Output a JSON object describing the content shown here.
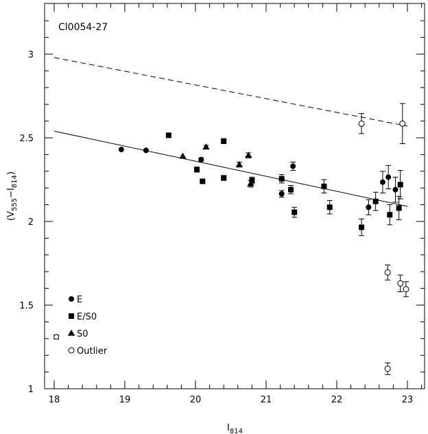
{
  "chart_data": {
    "type": "scatter",
    "title": "Cl0054-27",
    "xlabel_main": "I",
    "xlabel_sub": "814",
    "ylabel_open": "(V",
    "ylabel_sub1": "555",
    "ylabel_mid": "−I",
    "ylabel_sub2": "814",
    "ylabel_close": ")",
    "xlim": [
      18,
      23.2
    ],
    "ylim": [
      1,
      3.25
    ],
    "x_ticks": [
      18,
      19,
      20,
      21,
      22,
      23
    ],
    "y_ticks": [
      1,
      1.5,
      2,
      2.5,
      3
    ],
    "x_tick_labels": [
      "18",
      "19",
      "20",
      "21",
      "22",
      "23"
    ],
    "y_tick_labels": [
      "1",
      "1.5",
      "2",
      "2.5",
      "3"
    ],
    "legend_position": "bottom-left",
    "series": [
      {
        "name": "E",
        "marker": "filled-circle",
        "points": [
          {
            "x": 18.95,
            "y": 2.43,
            "err": 0
          },
          {
            "x": 19.3,
            "y": 2.425,
            "err": 0
          },
          {
            "x": 20.08,
            "y": 2.37,
            "err": 0.01
          },
          {
            "x": 21.22,
            "y": 2.165,
            "err": 0.02
          },
          {
            "x": 21.38,
            "y": 2.33,
            "err": 0.025
          },
          {
            "x": 22.45,
            "y": 2.085,
            "err": 0.045
          },
          {
            "x": 22.65,
            "y": 2.235,
            "err": 0.065
          },
          {
            "x": 22.73,
            "y": 2.265,
            "err": 0.07
          },
          {
            "x": 22.83,
            "y": 2.19,
            "err": 0.075
          }
        ]
      },
      {
        "name": "E/S0",
        "marker": "filled-square",
        "points": [
          {
            "x": 19.62,
            "y": 2.515,
            "err": 0
          },
          {
            "x": 20.02,
            "y": 2.31,
            "err": 0.015
          },
          {
            "x": 20.1,
            "y": 2.24,
            "err": 0
          },
          {
            "x": 20.4,
            "y": 2.48,
            "err": 0.015
          },
          {
            "x": 20.4,
            "y": 2.26,
            "err": 0.015
          },
          {
            "x": 20.8,
            "y": 2.245,
            "err": 0.02
          },
          {
            "x": 21.22,
            "y": 2.255,
            "err": 0.025
          },
          {
            "x": 21.35,
            "y": 2.19,
            "err": 0.025
          },
          {
            "x": 21.4,
            "y": 2.055,
            "err": 0.03
          },
          {
            "x": 21.82,
            "y": 2.21,
            "err": 0.04
          },
          {
            "x": 21.9,
            "y": 2.085,
            "err": 0.04
          },
          {
            "x": 22.35,
            "y": 1.965,
            "err": 0.05
          },
          {
            "x": 22.55,
            "y": 2.12,
            "err": 0.055
          },
          {
            "x": 22.75,
            "y": 2.04,
            "err": 0.06
          },
          {
            "x": 22.88,
            "y": 2.08,
            "err": 0.07
          },
          {
            "x": 22.9,
            "y": 2.22,
            "err": 0.085
          }
        ]
      },
      {
        "name": "S0",
        "marker": "filled-triangle",
        "points": [
          {
            "x": 19.82,
            "y": 2.39,
            "err": 0
          },
          {
            "x": 20.15,
            "y": 2.445,
            "err": 0.01
          },
          {
            "x": 20.62,
            "y": 2.34,
            "err": 0.015
          },
          {
            "x": 20.75,
            "y": 2.395,
            "err": 0.015
          },
          {
            "x": 20.78,
            "y": 2.225,
            "err": 0.02
          }
        ]
      },
      {
        "name": "Outlier",
        "marker": "open-circle",
        "points": [
          {
            "x": 22.35,
            "y": 2.585,
            "err": 0.06
          },
          {
            "x": 22.93,
            "y": 2.585,
            "err": 0.12
          },
          {
            "x": 22.72,
            "y": 1.695,
            "err": 0.045
          },
          {
            "x": 22.9,
            "y": 1.63,
            "err": 0.05
          },
          {
            "x": 22.98,
            "y": 1.595,
            "err": 0.045
          },
          {
            "x": 22.72,
            "y": 1.12,
            "err": 0.035
          }
        ]
      }
    ],
    "fit_lines": [
      {
        "style": "solid",
        "x": [
          18,
          23
        ],
        "y": [
          2.54,
          2.09
        ]
      },
      {
        "style": "dashed",
        "x": [
          18,
          23
        ],
        "y": [
          2.98,
          2.57
        ]
      }
    ],
    "reference_error": {
      "x": 18.03,
      "y": 1.31,
      "err": 0.012
    }
  }
}
